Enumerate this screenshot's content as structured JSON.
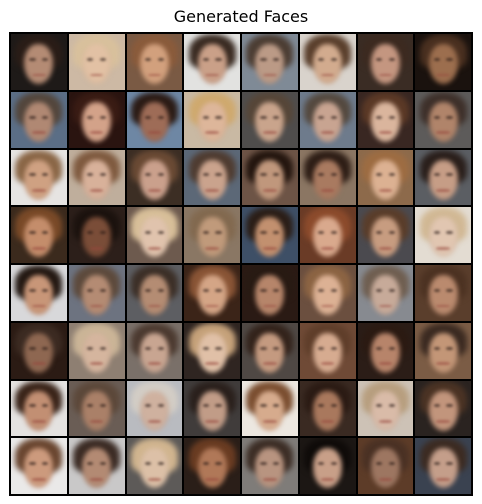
{
  "title": "Generated Faces",
  "grid": {
    "rows": 8,
    "cols": 8
  },
  "cells": [
    {
      "bg": "#1e1a18",
      "hair": "#2a1d17",
      "skin": "#b48b74"
    },
    {
      "bg": "#cdb9a4",
      "hair": "#d8c09c",
      "skin": "#e2c1a4"
    },
    {
      "bg": "#7a5a44",
      "hair": "#8a5b3b",
      "skin": "#d2a07d"
    },
    {
      "bg": "#e2e2e0",
      "hair": "#3a2b22",
      "skin": "#caa088"
    },
    {
      "bg": "#7f8a96",
      "hair": "#4c3d33",
      "skin": "#bb9a86"
    },
    {
      "bg": "#d9d3cc",
      "hair": "#5a3f2c",
      "skin": "#d2ab8e"
    },
    {
      "bg": "#3a2c24",
      "hair": "#3c2a20",
      "skin": "#c49680"
    },
    {
      "bg": "#1a120e",
      "hair": "#4a3020",
      "skin": "#9c6e4e"
    },
    {
      "bg": "#5b6e86",
      "hair": "#53463c",
      "skin": "#b08873"
    },
    {
      "bg": "#2a1410",
      "hair": "#3a1c14",
      "skin": "#d3a289"
    },
    {
      "bg": "#6e87a4",
      "hair": "#2b1b15",
      "skin": "#9e6c57"
    },
    {
      "bg": "#c9b9a3",
      "hair": "#cfa96e",
      "skin": "#ddb69a"
    },
    {
      "bg": "#4f4d4c",
      "hair": "#564638",
      "skin": "#c9a48c"
    },
    {
      "bg": "#6e7b8c",
      "hair": "#54493f",
      "skin": "#c8a491"
    },
    {
      "bg": "#392722",
      "hair": "#5b3926",
      "skin": "#dab59d"
    },
    {
      "bg": "#5d5b5a",
      "hair": "#3e302a",
      "skin": "#b0846a"
    },
    {
      "bg": "#e6e4e2",
      "hair": "#8a6646",
      "skin": "#cfa182"
    },
    {
      "bg": "#bfae9c",
      "hair": "#7f5a3f",
      "skin": "#d8b19a"
    },
    {
      "bg": "#3c2e24",
      "hair": "#6a4a34",
      "skin": "#caa08c"
    },
    {
      "bg": "#5c6877",
      "hair": "#4f3c31",
      "skin": "#caa38d"
    },
    {
      "bg": "#6d5446",
      "hair": "#24160f",
      "skin": "#c0977c"
    },
    {
      "bg": "#8b7663",
      "hair": "#2e1e16",
      "skin": "#a97a60"
    },
    {
      "bg": "#8d6a4b",
      "hair": "#9d6c42",
      "skin": "#dcb192"
    },
    {
      "bg": "#5b5e63",
      "hair": "#2a1f1b",
      "skin": "#c69d86"
    },
    {
      "bg": "#3b2a1d",
      "hair": "#7a4a28",
      "skin": "#c48d6b"
    },
    {
      "bg": "#2c1f1a",
      "hair": "#1b120e",
      "skin": "#7a4d38"
    },
    {
      "bg": "#6d5a4e",
      "hair": "#d8bf99",
      "skin": "#e0c3ad"
    },
    {
      "bg": "#8a7764",
      "hair": "#82694f",
      "skin": "#c09a7b"
    },
    {
      "bg": "#3e4f66",
      "hair": "#2b1e17",
      "skin": "#c2906f"
    },
    {
      "bg": "#6a3b26",
      "hair": "#8c4b2c",
      "skin": "#d9a98d"
    },
    {
      "bg": "#4b4a4f",
      "hair": "#5a3d2a",
      "skin": "#c79c80"
    },
    {
      "bg": "#e3dcd2",
      "hair": "#d1b894",
      "skin": "#e1c6b1"
    },
    {
      "bg": "#d8d8da",
      "hair": "#231812",
      "skin": "#c89678"
    },
    {
      "bg": "#6d7380",
      "hair": "#5d4a3c",
      "skin": "#b48b73"
    },
    {
      "bg": "#5d5e62",
      "hair": "#3c2f27",
      "skin": "#b48c73"
    },
    {
      "bg": "#3b2418",
      "hair": "#8a5536",
      "skin": "#d4a586"
    },
    {
      "bg": "#2a1a14",
      "hair": "#281a13",
      "skin": "#b6856a"
    },
    {
      "bg": "#6b4f3f",
      "hair": "#8c6443",
      "skin": "#dcb194"
    },
    {
      "bg": "#878a90",
      "hair": "#6f5e50",
      "skin": "#c7aa99"
    },
    {
      "bg": "#5a3e2c",
      "hair": "#4c3222",
      "skin": "#ba8a6e"
    },
    {
      "bg": "#2b1b14",
      "hair": "#3c2b22",
      "skin": "#8e6751"
    },
    {
      "bg": "#8e7f72",
      "hair": "#cbb597",
      "skin": "#d5b59e"
    },
    {
      "bg": "#7a7069",
      "hair": "#4c3a30",
      "skin": "#c8a591"
    },
    {
      "bg": "#2f2521",
      "hair": "#c6a27a",
      "skin": "#e0c0a7"
    },
    {
      "bg": "#4f4844",
      "hair": "#33231b",
      "skin": "#c49a80"
    },
    {
      "bg": "#6f4a36",
      "hair": "#5f3e2a",
      "skin": "#d6ab90"
    },
    {
      "bg": "#2b1d17",
      "hair": "#2b1a12",
      "skin": "#b7846a"
    },
    {
      "bg": "#7b5c45",
      "hair": "#3b2a21",
      "skin": "#c39677"
    },
    {
      "bg": "#e4e2e0",
      "hair": "#3a2419",
      "skin": "#c28f73"
    },
    {
      "bg": "#6a5d55",
      "hair": "#5c483a",
      "skin": "#aa8068"
    },
    {
      "bg": "#b9bbc0",
      "hair": "#d3cdc5",
      "skin": "#cfb19f"
    },
    {
      "bg": "#403c3b",
      "hair": "#2a201c",
      "skin": "#c19c87"
    },
    {
      "bg": "#ece7e0",
      "hair": "#7b4e30",
      "skin": "#d6ab8d"
    },
    {
      "bg": "#3a2a22",
      "hair": "#2b1b14",
      "skin": "#a9785d"
    },
    {
      "bg": "#cdc2b6",
      "hair": "#b79e7e",
      "skin": "#d9bba8"
    },
    {
      "bg": "#2a2320",
      "hair": "#4b3324",
      "skin": "#c2957c"
    },
    {
      "bg": "#eae9e8",
      "hair": "#6a4630",
      "skin": "#cc9a7d"
    },
    {
      "bg": "#c9c8c8",
      "hair": "#3b2b24",
      "skin": "#b38a73"
    },
    {
      "bg": "#5d5a58",
      "hair": "#d1b58f",
      "skin": "#dcc0a7"
    },
    {
      "bg": "#2a1e18",
      "hair": "#6a3c22",
      "skin": "#b07858"
    },
    {
      "bg": "#7f7c79",
      "hair": "#3d2e26",
      "skin": "#b89480"
    },
    {
      "bg": "#1c1714",
      "hair": "#0f0b09",
      "skin": "#c89f88"
    },
    {
      "bg": "#5d3c28",
      "hair": "#4a3124",
      "skin": "#9d7661"
    },
    {
      "bg": "#3a4250",
      "hair": "#3c2b22",
      "skin": "#c49e8a"
    }
  ]
}
